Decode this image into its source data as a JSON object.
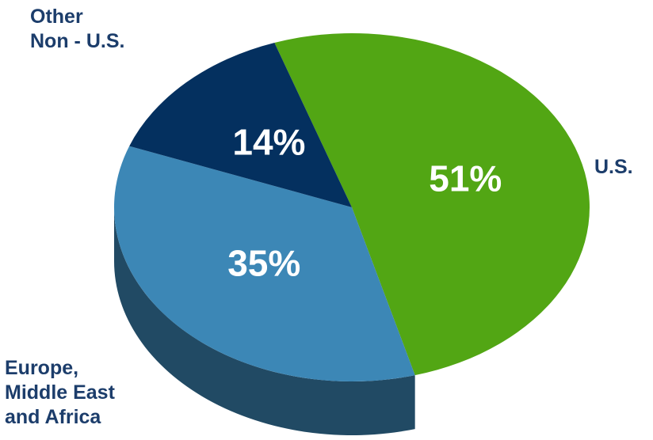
{
  "chart_data": {
    "type": "pie",
    "categories": [
      "U.S.",
      "Europe,\nMiddle East\nand Africa",
      "Other\nNon - U.S."
    ],
    "values": [
      51,
      35,
      14
    ],
    "value_labels": [
      "51%",
      "35%",
      "14%"
    ],
    "colors": [
      "#52a614",
      "#3c87b6",
      "#04305f"
    ]
  }
}
